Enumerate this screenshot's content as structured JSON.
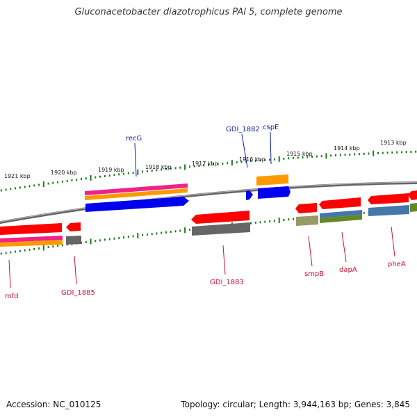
{
  "title": "Gluconacetobacter diazotrophicus PAl 5, complete genome",
  "footer": {
    "accession": "Accession: NC_010125",
    "topology": "Topology: circular; Length: 3,944,163 bp; Genes: 3,845"
  },
  "kbp_labels": [
    "1921 kbp",
    "1920 kbp",
    "1919 kbp",
    "1918 kbp",
    "1917 kbp",
    "1916 kbp",
    "1915 kbp",
    "1914 kbp",
    "1913 kbp"
  ],
  "gene_labels_top": [
    "recG",
    "GDI_1882",
    "cspE"
  ],
  "gene_labels_bottom": [
    "mfd",
    "GDI_1885",
    "GDI_1883",
    "smpB",
    "dapA",
    "pheA"
  ],
  "colors": {
    "red": "#ff0000",
    "blue": "#0000ee",
    "magenta": "#ee2288",
    "orange": "#ff9900",
    "gray": "#666666",
    "olive": "#999966",
    "steelblue": "#4477aa",
    "green": "#668822",
    "tick_green": "#1a7a1a",
    "label_blue": "#0d1aa8",
    "label_red": "#c8102e"
  }
}
